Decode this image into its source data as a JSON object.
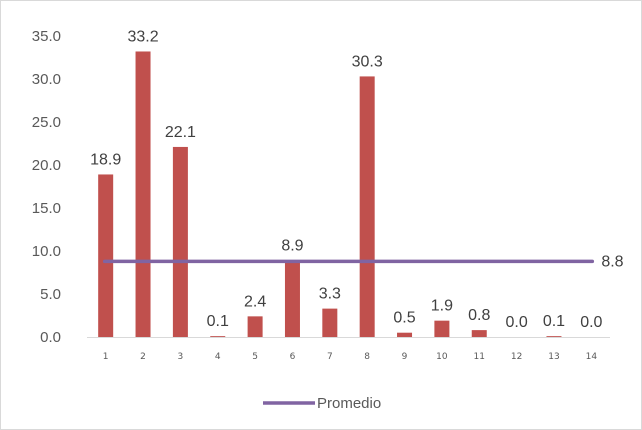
{
  "chart_data": {
    "type": "bar",
    "categories": [
      "1",
      "2",
      "3",
      "4",
      "5",
      "6",
      "7",
      "8",
      "9",
      "10",
      "11",
      "12",
      "13",
      "14"
    ],
    "series": [
      {
        "type": "bar",
        "values": [
          18.9,
          33.2,
          22.1,
          0.1,
          2.4,
          8.9,
          3.3,
          30.3,
          0.5,
          1.9,
          0.8,
          0.0,
          0.1,
          0.0
        ],
        "labels": [
          "18.9",
          "33.2",
          "22.1",
          "0.1",
          "2.4",
          "8.9",
          "3.3",
          "30.3",
          "0.5",
          "1.9",
          "0.8",
          "0.0",
          "0.1",
          "0.0"
        ],
        "color": "#c0504d"
      },
      {
        "name": "Promedio",
        "type": "line",
        "value": 8.8,
        "label": "8.8",
        "color": "#8064a2"
      }
    ],
    "y_ticks": [
      "0.0",
      "5.0",
      "10.0",
      "15.0",
      "20.0",
      "25.0",
      "30.0",
      "35.0"
    ],
    "ylim": [
      0,
      35
    ],
    "grid": false,
    "legend": {
      "position": "bottom",
      "items": [
        "Promedio"
      ]
    }
  }
}
